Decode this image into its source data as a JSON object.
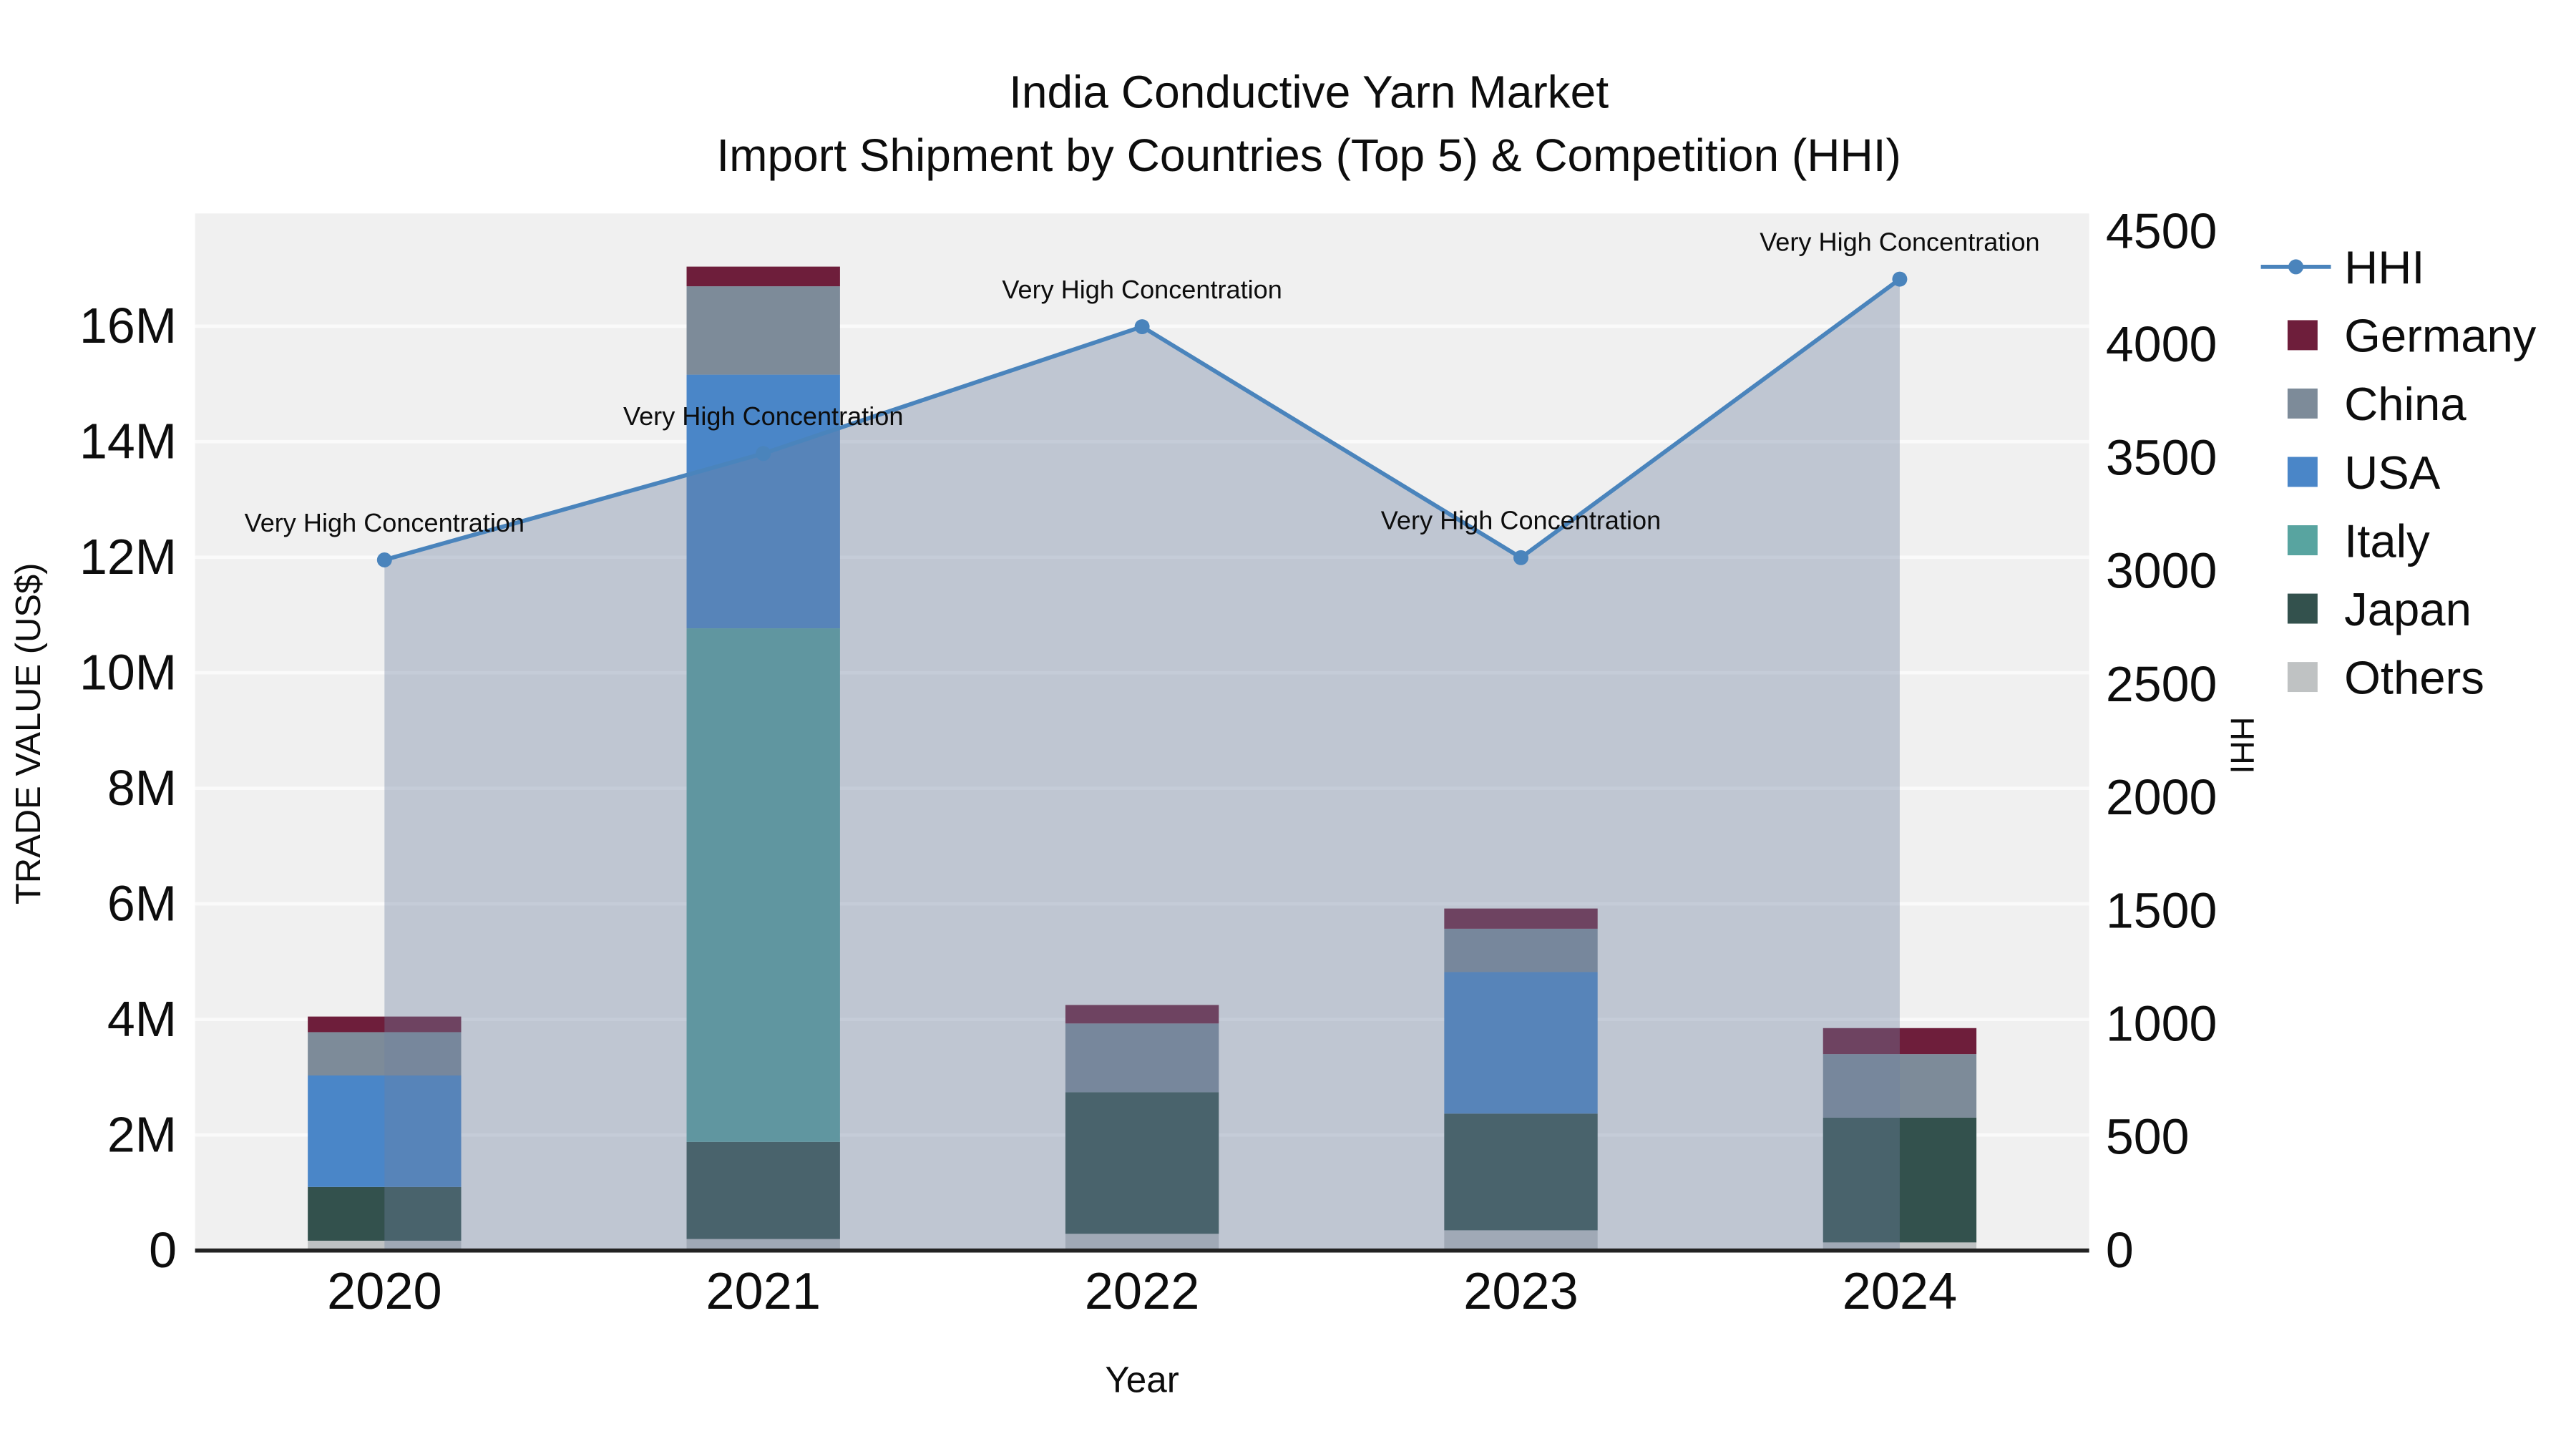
{
  "chart_data": {
    "type": "bar",
    "variant": "stacked-bars-with-hhi-line-and-area",
    "title": "India Conductive Yarn Market",
    "subtitle": "Import Shipment by Countries (Top 5) & Competition (HHI)",
    "xlabel": "Year",
    "ylabel_left": "TRADE VALUE (US$)",
    "ylabel_right": "HHI",
    "categories": [
      "2020",
      "2021",
      "2022",
      "2023",
      "2024"
    ],
    "bar_unit": "US$ millions",
    "bar_series": [
      {
        "name": "Others",
        "color": "#bfc2c3",
        "values": [
          0.17,
          0.2,
          0.29,
          0.35,
          0.14
        ]
      },
      {
        "name": "Japan",
        "color": "#33514d",
        "values": [
          0.93,
          1.68,
          2.45,
          2.02,
          2.16
        ]
      },
      {
        "name": "Italy",
        "color": "#58a4a0",
        "values": [
          0.0,
          8.89,
          0.0,
          0.0,
          0.0
        ]
      },
      {
        "name": "USA",
        "color": "#4a86c8",
        "values": [
          1.93,
          4.39,
          0.0,
          2.45,
          0.0
        ]
      },
      {
        "name": "China",
        "color": "#7d8b99",
        "values": [
          0.75,
          1.53,
          1.19,
          0.75,
          1.1
        ]
      },
      {
        "name": "Germany",
        "color": "#6e1e3b",
        "values": [
          0.27,
          0.34,
          0.32,
          0.35,
          0.45
        ]
      }
    ],
    "line_series": {
      "name": "HHI",
      "color": "#4a84bc",
      "fill": "rgba(110,130,160,0.38)",
      "values": [
        3050,
        3520,
        4080,
        3060,
        4290
      ]
    },
    "annotations": [
      "Very High Concentration",
      "Very High Concentration",
      "Very High Concentration",
      "Very High Concentration",
      "Very High Concentration"
    ],
    "left_axis": {
      "max": 17.95,
      "tick_values": [
        0,
        2,
        4,
        6,
        8,
        10,
        12,
        14,
        16
      ],
      "tick_labels": [
        "0",
        "2M",
        "4M",
        "6M",
        "8M",
        "10M",
        "12M",
        "14M",
        "16M"
      ]
    },
    "right_axis": {
      "max": 4580,
      "tick_values": [
        0,
        500,
        1000,
        1500,
        2000,
        2500,
        3000,
        3500,
        4000,
        4500
      ],
      "tick_labels": [
        "0",
        "500",
        "1000",
        "1500",
        "2000",
        "2500",
        "3000",
        "3500",
        "4000",
        "4500"
      ]
    }
  }
}
